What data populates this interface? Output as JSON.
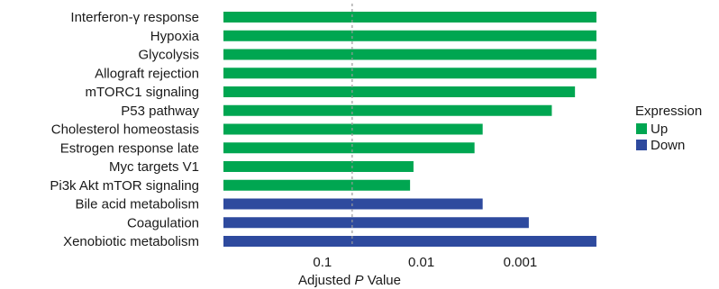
{
  "chart_data": {
    "type": "bar",
    "orientation": "horizontal",
    "categories": [
      "Interferon-γ response",
      "Hypoxia",
      "Glycolysis",
      "Allograft rejection",
      "mTORC1 signaling",
      "P53 pathway",
      "Cholesterol homeostasis",
      "Estrogen response late",
      "Myc targets V1",
      "Pi3k Akt mTOR signaling",
      "Bile acid metabolism",
      "Coagulation",
      "Xenobiotic metabolism"
    ],
    "values": [
      0.00017,
      0.00017,
      0.00017,
      0.00017,
      0.00028,
      0.00048,
      0.0024,
      0.0029,
      0.012,
      0.013,
      0.0024,
      0.00082,
      0.00017
    ],
    "expression": [
      "Up",
      "Up",
      "Up",
      "Up",
      "Up",
      "Up",
      "Up",
      "Up",
      "Up",
      "Up",
      "Down",
      "Down",
      "Down"
    ],
    "xlabel": {
      "prefix": "Adjusted ",
      "italic": "P",
      "suffix": " Value"
    },
    "x_scale": "log, reversed",
    "xlim": [
      1,
      0.00017
    ],
    "xticks": [
      0.1,
      0.01,
      0.001
    ],
    "xtick_labels": [
      "0.1",
      "0.01",
      "0.001"
    ],
    "reference_line": 0.05,
    "legend": {
      "title": "Expression",
      "position": "right",
      "entries": [
        {
          "label": "Up",
          "color": "#00a651"
        },
        {
          "label": "Down",
          "color": "#2e4a9e"
        }
      ]
    },
    "colors": {
      "Up": "#00a651",
      "Down": "#2e4a9e",
      "reference_line": "#999999"
    }
  }
}
